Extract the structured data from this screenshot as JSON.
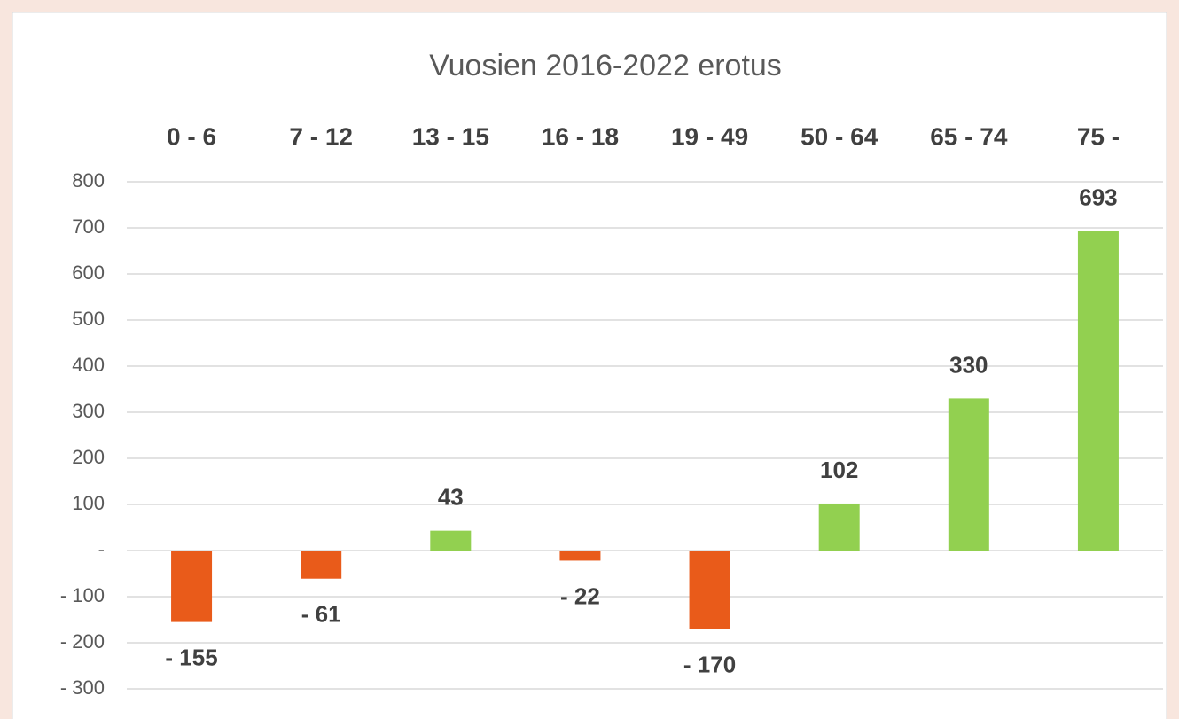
{
  "chart_data": {
    "type": "bar",
    "title": "Vuosien  2016-2022 erotus",
    "categories": [
      "0 - 6",
      "7 - 12",
      "13 - 15",
      "16 - 18",
      "19 - 49",
      "50 - 64",
      "65 - 74",
      "75 -"
    ],
    "values": [
      -155,
      -61,
      43,
      -22,
      -170,
      102,
      330,
      693
    ],
    "value_labels": [
      "- 155",
      "- 61",
      "43",
      "- 22",
      "- 170",
      "102",
      "330",
      "693"
    ],
    "colors": [
      "#e95b1a",
      "#e95b1a",
      "#92d050",
      "#e95b1a",
      "#e95b1a",
      "#92d050",
      "#92d050",
      "#92d050"
    ],
    "ylim": [
      -300,
      800
    ],
    "yticks": [
      {
        "value": -300,
        "label": "- 300"
      },
      {
        "value": -200,
        "label": "- 200"
      },
      {
        "value": -100,
        "label": "- 100"
      },
      {
        "value": 0,
        "label": "-"
      },
      100,
      200,
      300,
      400,
      500,
      600,
      700,
      800
    ],
    "grid": true
  }
}
